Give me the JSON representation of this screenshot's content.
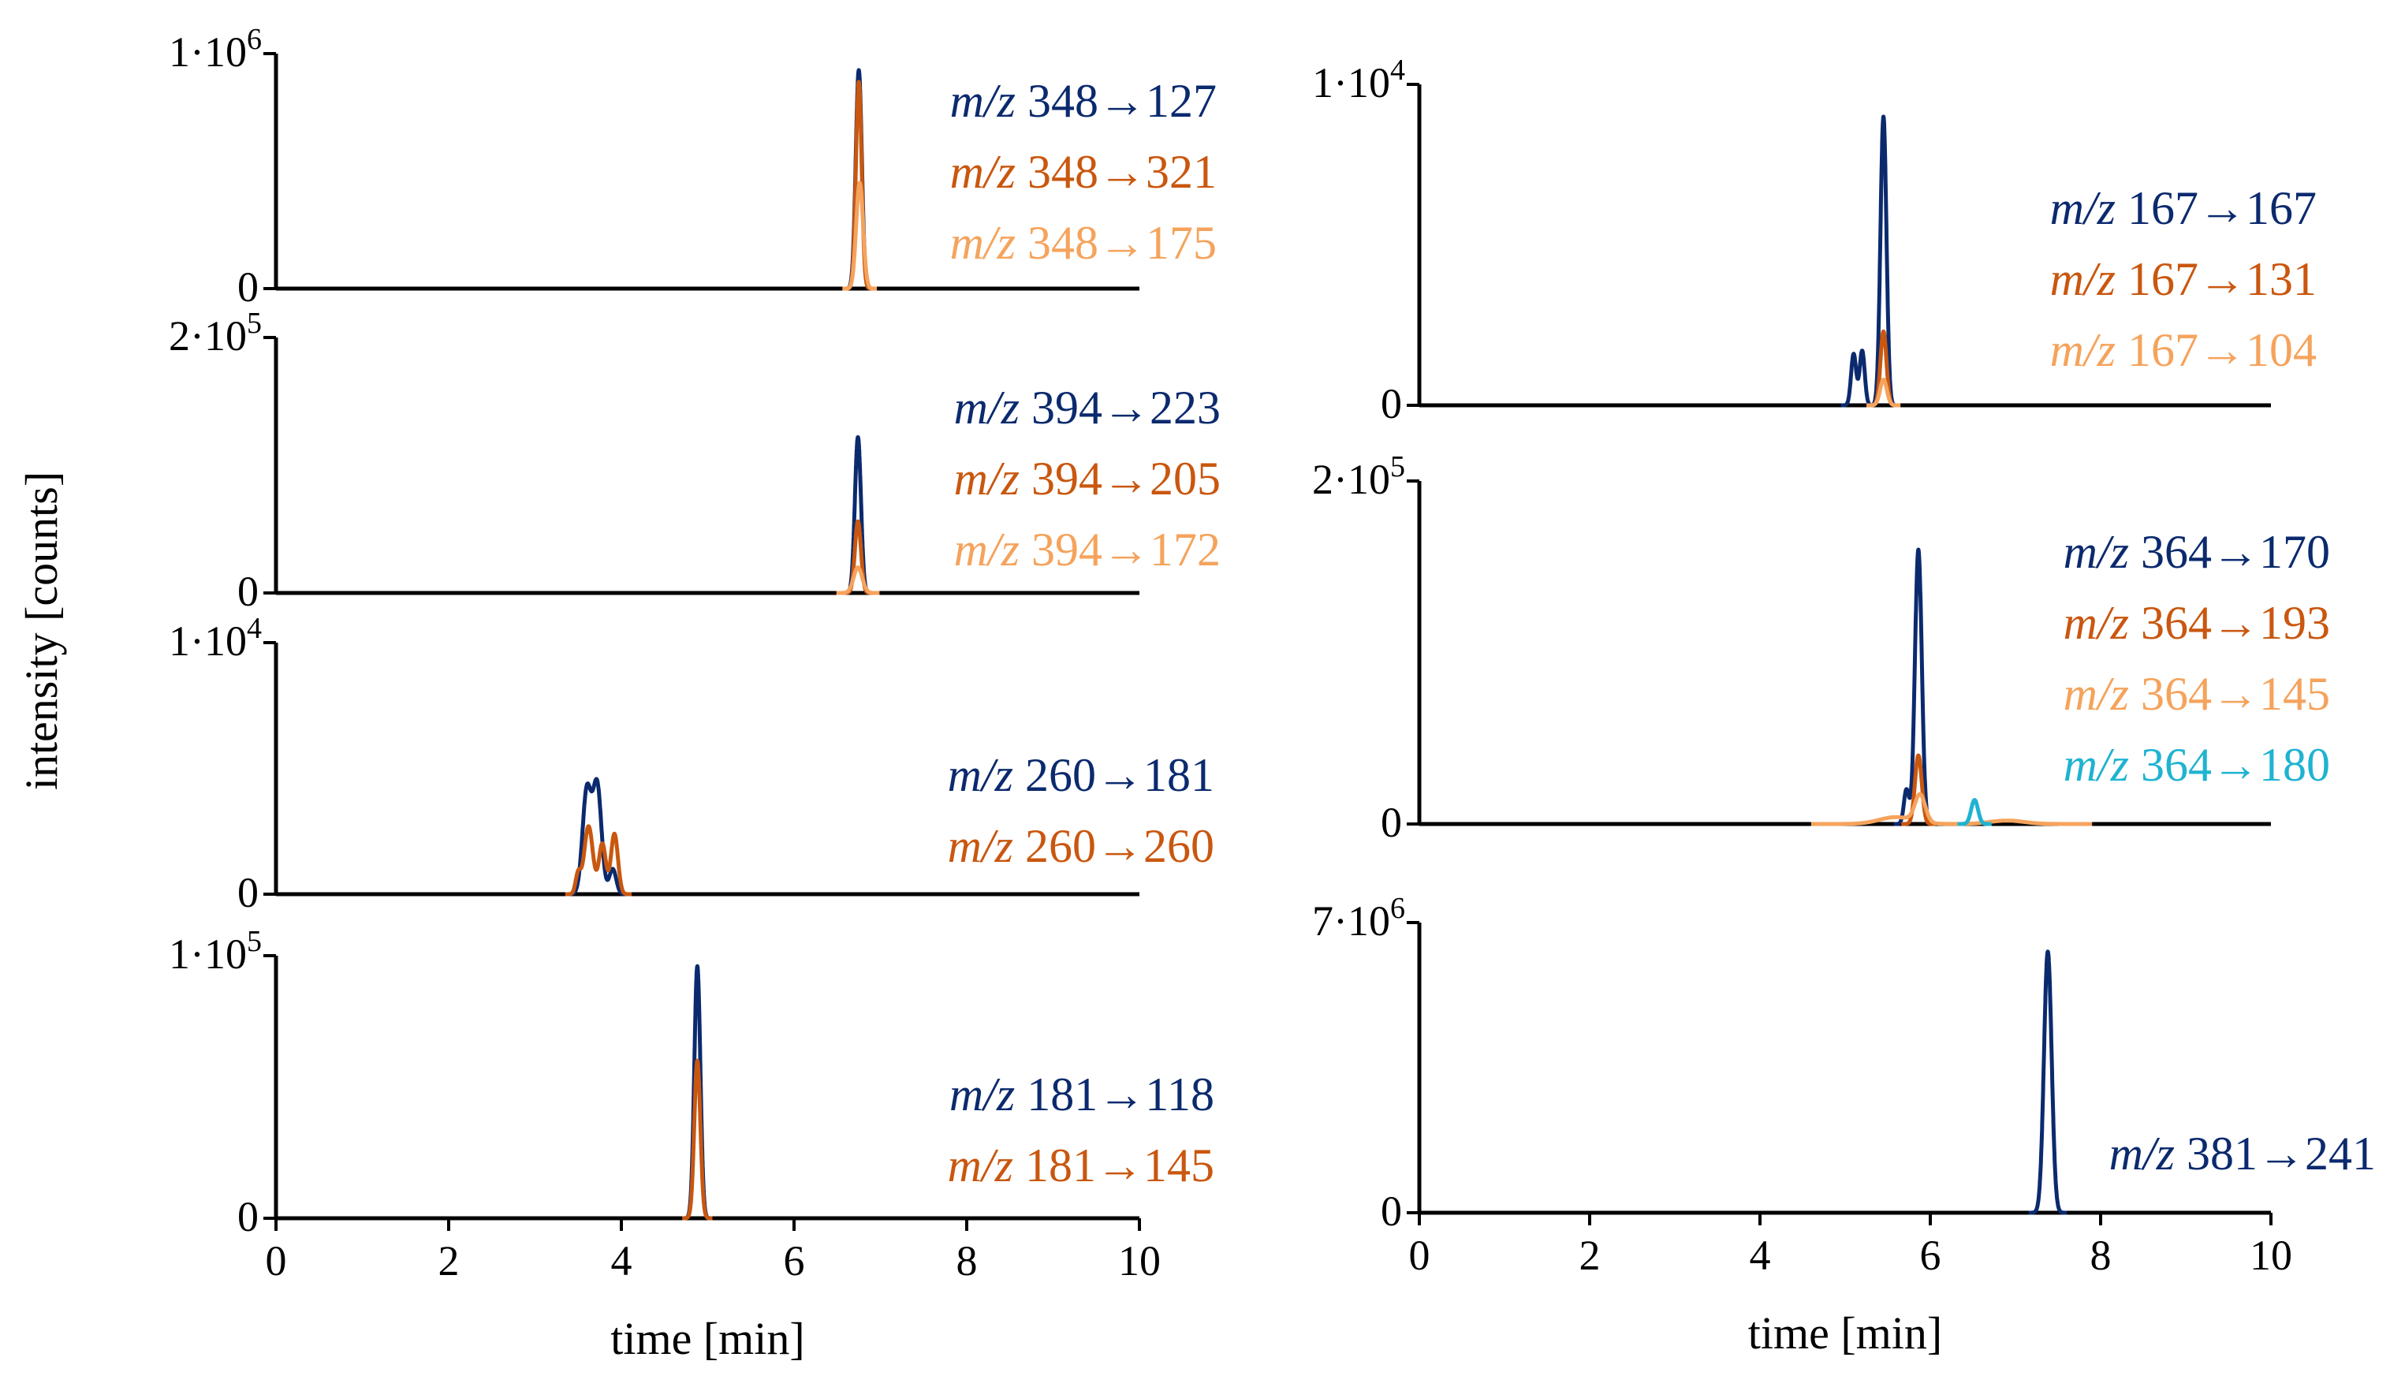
{
  "figure": {
    "ylabel": "intensity [counts]",
    "xlabel": "time [min]",
    "x_ticks": [
      "0",
      "2",
      "4",
      "6",
      "8",
      "10"
    ],
    "colors": {
      "navy": "#0b2a6e",
      "dark_orange": "#c9570f",
      "light_orange": "#f5a35c",
      "cyan": "#1fb3d1"
    }
  },
  "chart_data": [
    {
      "type": "line",
      "title": "",
      "column": "left",
      "show_xaxis": false,
      "xlim": [
        0,
        10
      ],
      "ylim": [
        0,
        1000000
      ],
      "y_top": {
        "mant": "1·10",
        "exp": "6"
      },
      "y_zero": "0",
      "series": [
        {
          "name": "m/z 348→127",
          "prefix": "m/z",
          "text": " 348→127",
          "color": "#0b2a6e",
          "peaks": [
            [
              6.75,
              0.93,
              0.035
            ]
          ]
        },
        {
          "name": "m/z 348→321",
          "prefix": "m/z",
          "text": " 348→321",
          "color": "#c9570f",
          "peaks": [
            [
              6.75,
              0.88,
              0.033
            ]
          ]
        },
        {
          "name": "m/z 348→175",
          "prefix": "m/z",
          "text": " 348→175",
          "color": "#f5a35c",
          "peaks": [
            [
              6.76,
              0.45,
              0.04
            ]
          ]
        }
      ]
    },
    {
      "type": "line",
      "title": "",
      "column": "left",
      "show_xaxis": false,
      "xlim": [
        0,
        10
      ],
      "ylim": [
        0,
        200000
      ],
      "y_top": {
        "mant": "2·10",
        "exp": "5"
      },
      "y_zero": "0",
      "series": [
        {
          "name": "m/z 394→223",
          "prefix": "m/z",
          "text": " 394→223",
          "color": "#0b2a6e",
          "peaks": [
            [
              6.74,
              0.61,
              0.035
            ]
          ]
        },
        {
          "name": "m/z 394→205",
          "prefix": "m/z",
          "text": " 394→205",
          "color": "#c9570f",
          "peaks": [
            [
              6.74,
              0.28,
              0.035
            ]
          ]
        },
        {
          "name": "m/z 394→172",
          "prefix": "m/z",
          "text": " 394→172",
          "color": "#f5a35c",
          "peaks": [
            [
              6.74,
              0.1,
              0.05
            ]
          ]
        }
      ]
    },
    {
      "type": "line",
      "title": "",
      "column": "left",
      "show_xaxis": false,
      "xlim": [
        0,
        10
      ],
      "ylim": [
        0,
        10000
      ],
      "y_top": {
        "mant": "1·10",
        "exp": "4"
      },
      "y_zero": "0",
      "series": [
        {
          "name": "m/z 260→181",
          "prefix": "m/z",
          "text": " 260→181",
          "color": "#0b2a6e",
          "peaks": [
            [
              3.6,
              0.41,
              0.05
            ],
            [
              3.72,
              0.43,
              0.05
            ],
            [
              3.9,
              0.1,
              0.04
            ]
          ]
        },
        {
          "name": "m/z 260→260",
          "prefix": "m/z",
          "text": " 260→260",
          "color": "#c9570f",
          "peaks": [
            [
              3.5,
              0.08,
              0.03
            ],
            [
              3.62,
              0.27,
              0.05
            ],
            [
              3.78,
              0.2,
              0.04
            ],
            [
              3.92,
              0.24,
              0.04
            ]
          ]
        }
      ]
    },
    {
      "type": "line",
      "title": "",
      "column": "left",
      "show_xaxis": true,
      "xlim": [
        0,
        10
      ],
      "ylim": [
        0,
        100000
      ],
      "y_top": {
        "mant": "1·10",
        "exp": "5"
      },
      "y_zero": "0",
      "series": [
        {
          "name": "m/z 181→118",
          "prefix": "m/z",
          "text": " 181→118",
          "color": "#0b2a6e",
          "peaks": [
            [
              4.88,
              0.96,
              0.035
            ]
          ]
        },
        {
          "name": "m/z 181→145",
          "prefix": "m/z",
          "text": " 181→145",
          "color": "#c9570f",
          "peaks": [
            [
              4.88,
              0.6,
              0.035
            ]
          ]
        }
      ]
    },
    {
      "type": "line",
      "title": "",
      "column": "right",
      "show_xaxis": false,
      "xlim": [
        0,
        10
      ],
      "ylim": [
        0,
        10000
      ],
      "y_top": {
        "mant": "1·10",
        "exp": "4"
      },
      "y_zero": "0",
      "series": [
        {
          "name": "m/z 167→167",
          "prefix": "m/z",
          "text": " 167→167",
          "color": "#0b2a6e",
          "peaks": [
            [
              5.1,
              0.16,
              0.03
            ],
            [
              5.2,
              0.17,
              0.03
            ],
            [
              5.45,
              0.9,
              0.035
            ]
          ]
        },
        {
          "name": "m/z 167→131",
          "prefix": "m/z",
          "text": " 167→131",
          "color": "#c9570f",
          "peaks": [
            [
              5.45,
              0.23,
              0.035
            ]
          ]
        },
        {
          "name": "m/z 167→104",
          "prefix": "m/z",
          "text": " 167→104",
          "color": "#f5a35c",
          "peaks": [
            [
              5.45,
              0.08,
              0.04
            ]
          ]
        }
      ]
    },
    {
      "type": "line",
      "title": "",
      "column": "right",
      "show_xaxis": false,
      "xlim": [
        0,
        10
      ],
      "ylim": [
        0,
        200000
      ],
      "y_top": {
        "mant": "2·10",
        "exp": "5"
      },
      "y_zero": "0",
      "series": [
        {
          "name": "m/z 364→170",
          "prefix": "m/z",
          "text": " 364→170",
          "color": "#0b2a6e",
          "peaks": [
            [
              5.72,
              0.1,
              0.03
            ],
            [
              5.86,
              0.8,
              0.04
            ]
          ]
        },
        {
          "name": "m/z 364→193",
          "prefix": "m/z",
          "text": " 364→193",
          "color": "#c9570f",
          "peaks": [
            [
              5.86,
              0.2,
              0.04
            ]
          ]
        },
        {
          "name": "m/z 364→145",
          "prefix": "m/z",
          "text": " 364→145",
          "color": "#f5a35c",
          "peaks": [
            [
              5.6,
              0.02,
              0.2
            ],
            [
              5.88,
              0.08,
              0.06
            ],
            [
              6.9,
              0.01,
              0.2
            ]
          ]
        },
        {
          "name": "m/z 364→180",
          "prefix": "m/z",
          "text": " 364→180",
          "color": "#1fb3d1",
          "peaks": [
            [
              6.52,
              0.07,
              0.04
            ]
          ]
        }
      ]
    },
    {
      "type": "line",
      "title": "",
      "column": "right",
      "show_xaxis": true,
      "xlim": [
        0,
        10
      ],
      "ylim": [
        0,
        7000000
      ],
      "y_top": {
        "mant": "7·10",
        "exp": "6"
      },
      "y_zero": "0",
      "series": [
        {
          "name": "m/z 381→241",
          "prefix": "m/z",
          "text": " 381→241",
          "color": "#0b2a6e",
          "peaks": [
            [
              7.38,
              0.9,
              0.045
            ]
          ]
        }
      ]
    }
  ]
}
